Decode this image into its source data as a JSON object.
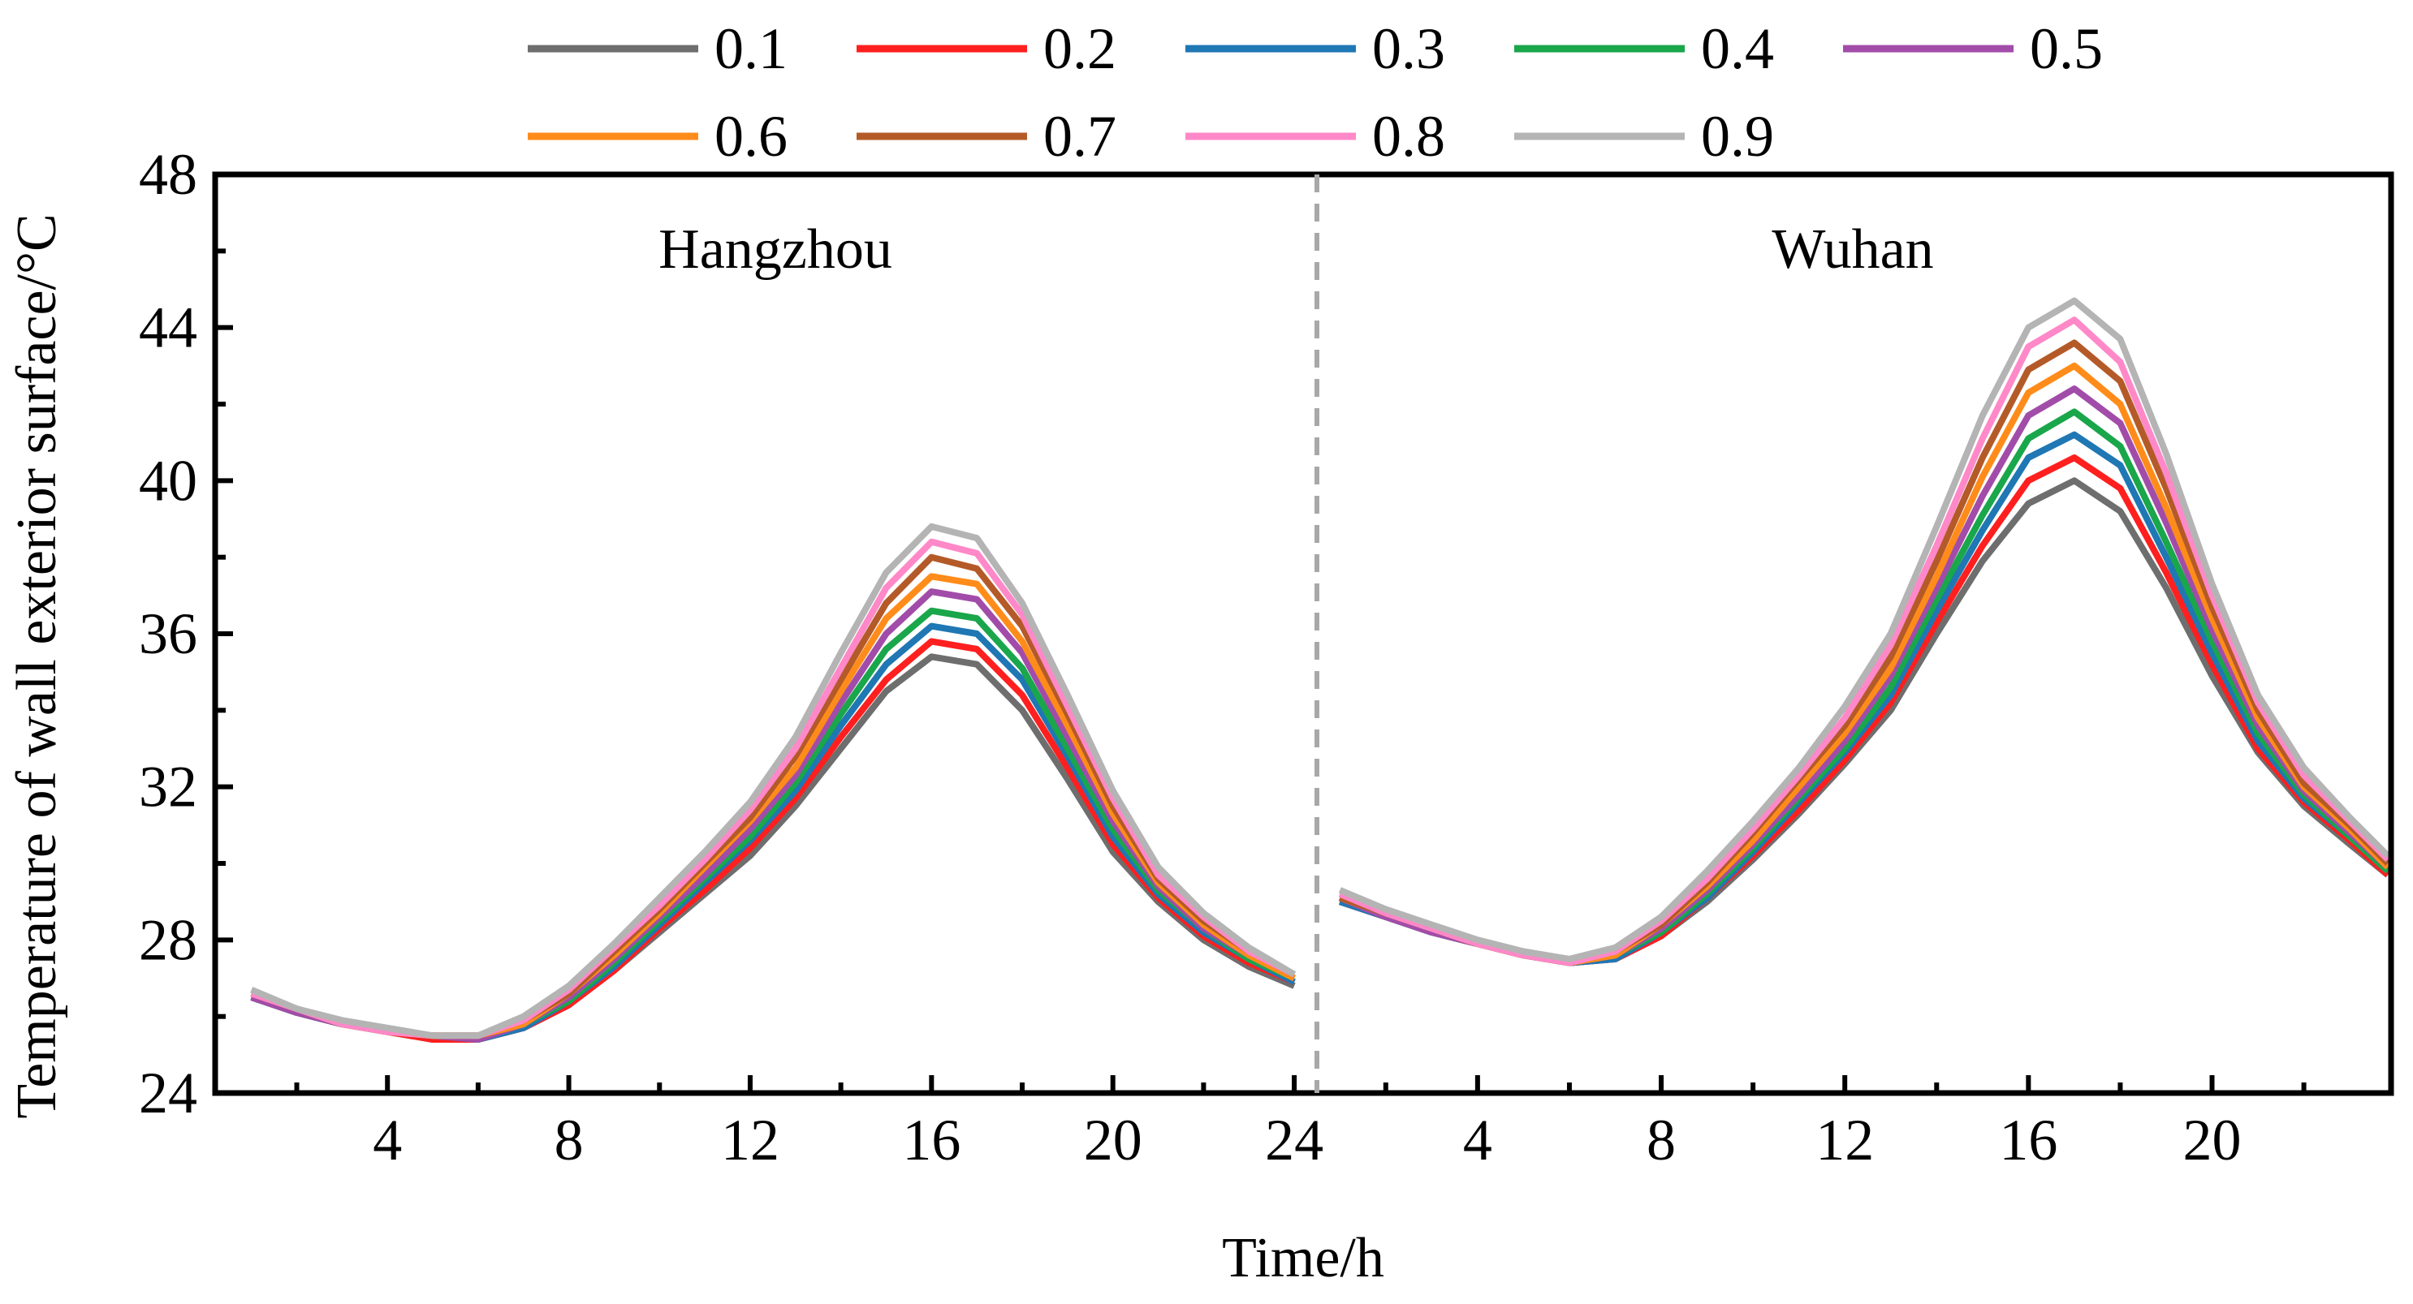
{
  "chart_data": {
    "type": "line",
    "ylabel": "Temperature of wall exterior surface/°C",
    "xlabel": "Time/h",
    "ylim": [
      24,
      48
    ],
    "yticks": [
      24,
      28,
      32,
      36,
      40,
      44,
      48
    ],
    "panels": [
      {
        "title": "Hangzhou",
        "xlim": [
          0.2,
          24.5
        ],
        "xticks": [
          4,
          8,
          12,
          16,
          20,
          24
        ],
        "x": [
          1,
          2,
          3,
          4,
          5,
          6,
          7,
          8,
          9,
          10,
          11,
          12,
          13,
          14,
          15,
          16,
          17,
          18,
          19,
          20,
          21,
          22,
          23,
          24
        ],
        "series": [
          {
            "name": "0.1",
            "color": "#6e6e6e",
            "values": [
              26.5,
              26.1,
              25.8,
              25.6,
              25.4,
              25.4,
              25.7,
              26.3,
              27.2,
              28.2,
              29.2,
              30.2,
              31.5,
              33.0,
              34.5,
              35.4,
              35.2,
              34.0,
              32.2,
              30.3,
              29.0,
              28.0,
              27.3,
              26.8
            ]
          },
          {
            "name": "0.2",
            "color": "#ff1f1f",
            "values": [
              26.5,
              26.1,
              25.8,
              25.6,
              25.4,
              25.4,
              25.7,
              26.3,
              27.2,
              28.3,
              29.3,
              30.4,
              31.7,
              33.3,
              34.8,
              35.8,
              35.6,
              34.4,
              32.5,
              30.5,
              29.1,
              28.1,
              27.4,
              26.9
            ]
          },
          {
            "name": "0.3",
            "color": "#1f77b4",
            "values": [
              26.5,
              26.1,
              25.8,
              25.6,
              25.5,
              25.4,
              25.7,
              26.4,
              27.3,
              28.4,
              29.5,
              30.6,
              31.9,
              33.6,
              35.2,
              36.2,
              36.0,
              34.8,
              32.8,
              30.7,
              29.2,
              28.2,
              27.5,
              26.9
            ]
          },
          {
            "name": "0.4",
            "color": "#1aa64a",
            "values": [
              26.5,
              26.1,
              25.8,
              25.6,
              25.5,
              25.4,
              25.8,
              26.4,
              27.4,
              28.5,
              29.6,
              30.7,
              32.1,
              33.9,
              35.6,
              36.6,
              36.4,
              35.1,
              33.0,
              30.9,
              29.3,
              28.3,
              27.5,
              27.0
            ]
          },
          {
            "name": "0.5",
            "color": "#a24ca9",
            "values": [
              26.5,
              26.1,
              25.8,
              25.6,
              25.5,
              25.4,
              25.8,
              26.5,
              27.5,
              28.6,
              29.7,
              30.9,
              32.3,
              34.2,
              36.0,
              37.1,
              36.9,
              35.5,
              33.3,
              31.1,
              29.4,
              28.3,
              27.6,
              27.0
            ]
          },
          {
            "name": "0.6",
            "color": "#ff8c1a",
            "values": [
              26.6,
              26.2,
              25.8,
              25.6,
              25.5,
              25.5,
              25.8,
              26.6,
              27.6,
              28.7,
              29.9,
              31.1,
              32.5,
              34.5,
              36.4,
              37.5,
              37.3,
              35.8,
              33.6,
              31.3,
              29.5,
              28.4,
              27.6,
              27.0
            ]
          },
          {
            "name": "0.7",
            "color": "#b45a28",
            "values": [
              26.6,
              26.2,
              25.8,
              25.6,
              25.5,
              25.5,
              25.9,
              26.6,
              27.7,
              28.8,
              30.0,
              31.2,
              32.8,
              34.8,
              36.8,
              38.0,
              37.7,
              36.2,
              33.9,
              31.5,
              29.6,
              28.5,
              27.7,
              27.1
            ]
          },
          {
            "name": "0.8",
            "color": "#ff88c8",
            "values": [
              26.6,
              26.2,
              25.8,
              25.6,
              25.5,
              25.5,
              25.9,
              26.7,
              27.8,
              28.9,
              30.1,
              31.4,
              33.0,
              35.1,
              37.2,
              38.4,
              38.1,
              36.5,
              34.1,
              31.7,
              29.7,
              28.6,
              27.7,
              27.1
            ]
          },
          {
            "name": "0.9",
            "color": "#b4b4b4",
            "values": [
              26.7,
              26.2,
              25.9,
              25.7,
              25.5,
              25.5,
              26.0,
              26.8,
              27.9,
              29.1,
              30.3,
              31.6,
              33.3,
              35.5,
              37.6,
              38.8,
              38.5,
              36.8,
              34.4,
              31.9,
              29.9,
              28.7,
              27.8,
              27.1
            ]
          }
        ]
      },
      {
        "title": "Wuhan",
        "xlim": [
          0.5,
          23.9
        ],
        "xticks": [
          4,
          8,
          12,
          16,
          20
        ],
        "x": [
          1,
          2,
          3,
          4,
          5,
          6,
          7,
          8,
          9,
          10,
          11,
          12,
          13,
          14,
          15,
          16,
          17,
          18,
          19,
          20,
          21,
          22,
          23,
          24
        ],
        "series": [
          {
            "name": "0.1",
            "color": "#6e6e6e",
            "values": [
              29.0,
              28.6,
              28.2,
              27.9,
              27.6,
              27.4,
              27.5,
              28.1,
              29.0,
              30.1,
              31.3,
              32.6,
              34.0,
              36.0,
              37.9,
              39.4,
              40.0,
              39.2,
              37.2,
              34.9,
              32.9,
              31.5,
              30.5,
              29.7
            ]
          },
          {
            "name": "0.2",
            "color": "#ff1f1f",
            "values": [
              29.0,
              28.6,
              28.2,
              27.9,
              27.6,
              27.4,
              27.5,
              28.1,
              29.1,
              30.2,
              31.4,
              32.7,
              34.2,
              36.3,
              38.3,
              40.0,
              40.6,
              39.8,
              37.6,
              35.2,
              33.0,
              31.6,
              30.6,
              29.7
            ]
          },
          {
            "name": "0.3",
            "color": "#1f77b4",
            "values": [
              29.0,
              28.6,
              28.2,
              27.9,
              27.6,
              27.4,
              27.5,
              28.2,
              29.1,
              30.3,
              31.6,
              32.9,
              34.4,
              36.6,
              38.7,
              40.6,
              41.2,
              40.4,
              38.0,
              35.5,
              33.2,
              31.7,
              30.7,
              29.8
            ]
          },
          {
            "name": "0.4",
            "color": "#1aa64a",
            "values": [
              29.1,
              28.6,
              28.2,
              27.9,
              27.6,
              27.4,
              27.6,
              28.2,
              29.2,
              30.4,
              31.7,
              33.0,
              34.6,
              36.9,
              39.1,
              41.1,
              41.8,
              40.9,
              38.4,
              35.8,
              33.4,
              31.8,
              30.7,
              29.8
            ]
          },
          {
            "name": "0.5",
            "color": "#a24ca9",
            "values": [
              29.1,
              28.6,
              28.2,
              27.9,
              27.6,
              27.4,
              27.6,
              28.3,
              29.3,
              30.5,
              31.8,
              33.2,
              34.9,
              37.2,
              39.6,
              41.7,
              42.4,
              41.5,
              38.9,
              36.1,
              33.6,
              31.9,
              30.8,
              29.9
            ]
          },
          {
            "name": "0.6",
            "color": "#ff8c1a",
            "values": [
              29.1,
              28.7,
              28.3,
              27.9,
              27.6,
              27.4,
              27.6,
              28.4,
              29.4,
              30.6,
              32.0,
              33.4,
              35.1,
              37.5,
              40.1,
              42.3,
              43.0,
              42.0,
              39.3,
              36.4,
              33.8,
              32.0,
              30.9,
              29.9
            ]
          },
          {
            "name": "0.7",
            "color": "#b45a28",
            "values": [
              29.1,
              28.7,
              28.3,
              27.9,
              27.6,
              27.4,
              27.7,
              28.4,
              29.5,
              30.8,
              32.2,
              33.6,
              35.4,
              37.9,
              40.6,
              42.9,
              43.6,
              42.6,
              39.8,
              36.7,
              34.0,
              32.1,
              31.0,
              30.0
            ]
          },
          {
            "name": "0.8",
            "color": "#ff88c8",
            "values": [
              29.2,
              28.7,
              28.3,
              27.9,
              27.6,
              27.4,
              27.7,
              28.5,
              29.6,
              30.9,
              32.3,
              33.8,
              35.7,
              38.3,
              41.1,
              43.5,
              44.2,
              43.1,
              40.2,
              37.0,
              34.2,
              32.3,
              31.1,
              30.1
            ]
          },
          {
            "name": "0.9",
            "color": "#b4b4b4",
            "values": [
              29.3,
              28.8,
              28.4,
              28.0,
              27.7,
              27.5,
              27.8,
              28.6,
              29.8,
              31.1,
              32.5,
              34.1,
              36.0,
              38.8,
              41.7,
              44.0,
              44.7,
              43.7,
              40.7,
              37.3,
              34.4,
              32.5,
              31.2,
              30.2
            ]
          }
        ]
      }
    ],
    "legend": [
      "0.1",
      "0.2",
      "0.3",
      "0.4",
      "0.5",
      "0.6",
      "0.7",
      "0.8",
      "0.9"
    ]
  }
}
